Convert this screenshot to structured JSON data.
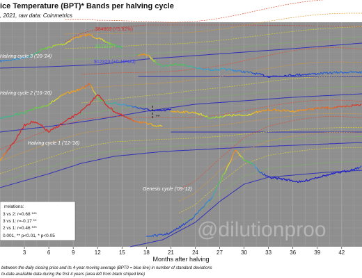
{
  "header": {
    "title": "ice Temperature (BPT)* Bands per halving cycle",
    "subtitle": ", 2021, raw data: Coinmetrics"
  },
  "footer": {
    "line1": "between the daily closing price and its 4-year moving average (BPT0 = blue line) in number of standard deviations",
    "line2": "to-date-available data during the first 4 years (area left from black striped line)"
  },
  "watermark": "@dilutionproo",
  "legend": {
    "title": "rrelations:",
    "rows": [
      "3 vs 2: r=0.68 ***",
      "3 vs 1: r=-0.17 **",
      "2 vs 1: r=0.46 ***",
      "0.001, ** p<0.01, * p<0.05"
    ]
  },
  "chart_data": {
    "type": "line",
    "xlabel": "Months after halving",
    "x_ticks": [
      3,
      6,
      9,
      12,
      15,
      18,
      21,
      24,
      27,
      30,
      33,
      36,
      39,
      42
    ],
    "xlim": [
      0,
      44.5
    ],
    "grid": true,
    "cycles": [
      {
        "name": "Halving cycle 3 ('20-'24)",
        "annotations": [
          {
            "text": "$64863 (+5.92%)",
            "color": "#d73027"
          },
          {
            "text": "$37313",
            "color": "#5cd65c"
          },
          {
            "text": "$12323 (+0.19%/d)",
            "color": "#4040ff"
          }
        ]
      },
      {
        "name": "Halving cycle 2 ('16-'20)",
        "annotations": [
          {
            "text": "**",
            "color": "#111111"
          }
        ]
      },
      {
        "name": "Halving cycle 1 ('12-'16)",
        "annotations": []
      },
      {
        "name": "Genesis cycle ('09-'12)",
        "annotations": []
      }
    ]
  }
}
